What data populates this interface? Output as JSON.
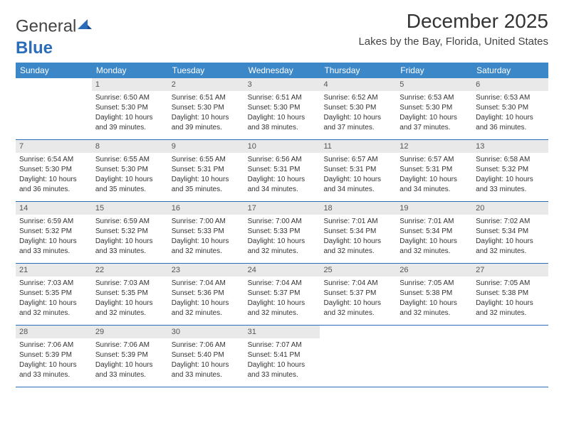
{
  "brand": {
    "part1": "General",
    "part2": "Blue"
  },
  "title": "December 2025",
  "location": "Lakes by the Bay, Florida, United States",
  "colors": {
    "header_bg": "#3c87c8",
    "header_text": "#ffffff",
    "daynum_bg": "#e9e9e9",
    "border": "#2a6db8",
    "body_text": "#333333"
  },
  "weekdays": [
    "Sunday",
    "Monday",
    "Tuesday",
    "Wednesday",
    "Thursday",
    "Friday",
    "Saturday"
  ],
  "weeks": [
    [
      null,
      {
        "n": "1",
        "sr": "Sunrise: 6:50 AM",
        "ss": "Sunset: 5:30 PM",
        "d1": "Daylight: 10 hours",
        "d2": "and 39 minutes."
      },
      {
        "n": "2",
        "sr": "Sunrise: 6:51 AM",
        "ss": "Sunset: 5:30 PM",
        "d1": "Daylight: 10 hours",
        "d2": "and 39 minutes."
      },
      {
        "n": "3",
        "sr": "Sunrise: 6:51 AM",
        "ss": "Sunset: 5:30 PM",
        "d1": "Daylight: 10 hours",
        "d2": "and 38 minutes."
      },
      {
        "n": "4",
        "sr": "Sunrise: 6:52 AM",
        "ss": "Sunset: 5:30 PM",
        "d1": "Daylight: 10 hours",
        "d2": "and 37 minutes."
      },
      {
        "n": "5",
        "sr": "Sunrise: 6:53 AM",
        "ss": "Sunset: 5:30 PM",
        "d1": "Daylight: 10 hours",
        "d2": "and 37 minutes."
      },
      {
        "n": "6",
        "sr": "Sunrise: 6:53 AM",
        "ss": "Sunset: 5:30 PM",
        "d1": "Daylight: 10 hours",
        "d2": "and 36 minutes."
      }
    ],
    [
      {
        "n": "7",
        "sr": "Sunrise: 6:54 AM",
        "ss": "Sunset: 5:30 PM",
        "d1": "Daylight: 10 hours",
        "d2": "and 36 minutes."
      },
      {
        "n": "8",
        "sr": "Sunrise: 6:55 AM",
        "ss": "Sunset: 5:30 PM",
        "d1": "Daylight: 10 hours",
        "d2": "and 35 minutes."
      },
      {
        "n": "9",
        "sr": "Sunrise: 6:55 AM",
        "ss": "Sunset: 5:31 PM",
        "d1": "Daylight: 10 hours",
        "d2": "and 35 minutes."
      },
      {
        "n": "10",
        "sr": "Sunrise: 6:56 AM",
        "ss": "Sunset: 5:31 PM",
        "d1": "Daylight: 10 hours",
        "d2": "and 34 minutes."
      },
      {
        "n": "11",
        "sr": "Sunrise: 6:57 AM",
        "ss": "Sunset: 5:31 PM",
        "d1": "Daylight: 10 hours",
        "d2": "and 34 minutes."
      },
      {
        "n": "12",
        "sr": "Sunrise: 6:57 AM",
        "ss": "Sunset: 5:31 PM",
        "d1": "Daylight: 10 hours",
        "d2": "and 34 minutes."
      },
      {
        "n": "13",
        "sr": "Sunrise: 6:58 AM",
        "ss": "Sunset: 5:32 PM",
        "d1": "Daylight: 10 hours",
        "d2": "and 33 minutes."
      }
    ],
    [
      {
        "n": "14",
        "sr": "Sunrise: 6:59 AM",
        "ss": "Sunset: 5:32 PM",
        "d1": "Daylight: 10 hours",
        "d2": "and 33 minutes."
      },
      {
        "n": "15",
        "sr": "Sunrise: 6:59 AM",
        "ss": "Sunset: 5:32 PM",
        "d1": "Daylight: 10 hours",
        "d2": "and 33 minutes."
      },
      {
        "n": "16",
        "sr": "Sunrise: 7:00 AM",
        "ss": "Sunset: 5:33 PM",
        "d1": "Daylight: 10 hours",
        "d2": "and 32 minutes."
      },
      {
        "n": "17",
        "sr": "Sunrise: 7:00 AM",
        "ss": "Sunset: 5:33 PM",
        "d1": "Daylight: 10 hours",
        "d2": "and 32 minutes."
      },
      {
        "n": "18",
        "sr": "Sunrise: 7:01 AM",
        "ss": "Sunset: 5:34 PM",
        "d1": "Daylight: 10 hours",
        "d2": "and 32 minutes."
      },
      {
        "n": "19",
        "sr": "Sunrise: 7:01 AM",
        "ss": "Sunset: 5:34 PM",
        "d1": "Daylight: 10 hours",
        "d2": "and 32 minutes."
      },
      {
        "n": "20",
        "sr": "Sunrise: 7:02 AM",
        "ss": "Sunset: 5:34 PM",
        "d1": "Daylight: 10 hours",
        "d2": "and 32 minutes."
      }
    ],
    [
      {
        "n": "21",
        "sr": "Sunrise: 7:03 AM",
        "ss": "Sunset: 5:35 PM",
        "d1": "Daylight: 10 hours",
        "d2": "and 32 minutes."
      },
      {
        "n": "22",
        "sr": "Sunrise: 7:03 AM",
        "ss": "Sunset: 5:35 PM",
        "d1": "Daylight: 10 hours",
        "d2": "and 32 minutes."
      },
      {
        "n": "23",
        "sr": "Sunrise: 7:04 AM",
        "ss": "Sunset: 5:36 PM",
        "d1": "Daylight: 10 hours",
        "d2": "and 32 minutes."
      },
      {
        "n": "24",
        "sr": "Sunrise: 7:04 AM",
        "ss": "Sunset: 5:37 PM",
        "d1": "Daylight: 10 hours",
        "d2": "and 32 minutes."
      },
      {
        "n": "25",
        "sr": "Sunrise: 7:04 AM",
        "ss": "Sunset: 5:37 PM",
        "d1": "Daylight: 10 hours",
        "d2": "and 32 minutes."
      },
      {
        "n": "26",
        "sr": "Sunrise: 7:05 AM",
        "ss": "Sunset: 5:38 PM",
        "d1": "Daylight: 10 hours",
        "d2": "and 32 minutes."
      },
      {
        "n": "27",
        "sr": "Sunrise: 7:05 AM",
        "ss": "Sunset: 5:38 PM",
        "d1": "Daylight: 10 hours",
        "d2": "and 32 minutes."
      }
    ],
    [
      {
        "n": "28",
        "sr": "Sunrise: 7:06 AM",
        "ss": "Sunset: 5:39 PM",
        "d1": "Daylight: 10 hours",
        "d2": "and 33 minutes."
      },
      {
        "n": "29",
        "sr": "Sunrise: 7:06 AM",
        "ss": "Sunset: 5:39 PM",
        "d1": "Daylight: 10 hours",
        "d2": "and 33 minutes."
      },
      {
        "n": "30",
        "sr": "Sunrise: 7:06 AM",
        "ss": "Sunset: 5:40 PM",
        "d1": "Daylight: 10 hours",
        "d2": "and 33 minutes."
      },
      {
        "n": "31",
        "sr": "Sunrise: 7:07 AM",
        "ss": "Sunset: 5:41 PM",
        "d1": "Daylight: 10 hours",
        "d2": "and 33 minutes."
      },
      null,
      null,
      null
    ]
  ]
}
